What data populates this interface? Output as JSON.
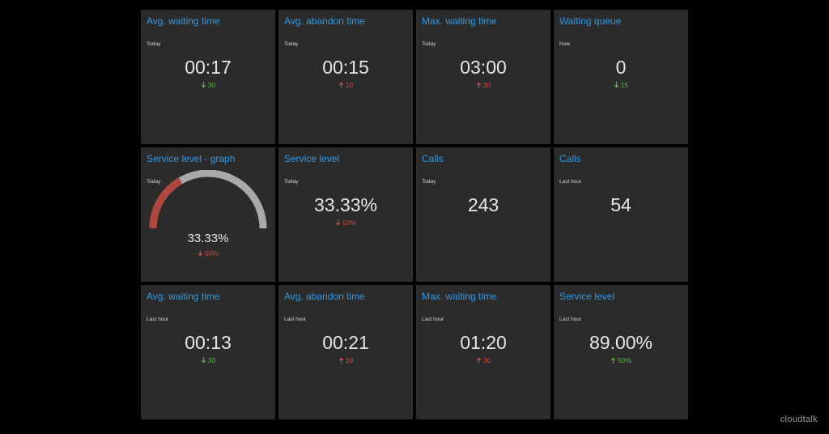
{
  "tiles": [
    {
      "title": "Avg. waiting time",
      "period": "Today",
      "value": "00:17",
      "trend": {
        "direction": "down",
        "text": "30",
        "status": "good"
      }
    },
    {
      "title": "Avg. abandon time",
      "period": "Today",
      "value": "00:15",
      "trend": {
        "direction": "up",
        "text": "10",
        "status": "bad"
      }
    },
    {
      "title": "Max. waiting time",
      "period": "Today",
      "value": "03:00",
      "trend": {
        "direction": "up",
        "text": "30",
        "status": "bad"
      }
    },
    {
      "title": "Waiting queue",
      "period": "Now",
      "value": "0",
      "trend": {
        "direction": "down",
        "text": "15",
        "status": "good"
      }
    },
    {
      "title": "Service level - graph",
      "period": "Today",
      "value": "33.33%",
      "gauge_fraction": 0.3333,
      "trend": {
        "direction": "down",
        "text": "50%",
        "status": "bad"
      }
    },
    {
      "title": "Service level",
      "period": "Today",
      "value": "33.33%",
      "trend": {
        "direction": "down",
        "text": "50%",
        "status": "bad"
      }
    },
    {
      "title": "Calls",
      "period": "Today",
      "value": "243"
    },
    {
      "title": "Calls",
      "period": "Last hour",
      "value": "54"
    },
    {
      "title": "Avg. waiting time",
      "period": "Last hour",
      "value": "00:13",
      "trend": {
        "direction": "down",
        "text": "30",
        "status": "good"
      }
    },
    {
      "title": "Avg. abandon time",
      "period": "Last hour",
      "value": "00:21",
      "trend": {
        "direction": "up",
        "text": "10",
        "status": "bad"
      }
    },
    {
      "title": "Max. waiting time",
      "period": "Last hour",
      "value": "01:20",
      "trend": {
        "direction": "up",
        "text": "30",
        "status": "bad"
      }
    },
    {
      "title": "Service level",
      "period": "Last hour",
      "value": "89.00%",
      "trend": {
        "direction": "up",
        "text": "50%",
        "status": "good"
      }
    }
  ],
  "colors": {
    "background": "#000000",
    "tile": "#2b2b2b",
    "title": "#2f9ae6",
    "good": "#55b944",
    "bad": "#d34a3f",
    "gauge_fill": "#b0463d",
    "gauge_track": "#a9a9a9"
  },
  "brand": {
    "logo_text": "cloudtalk"
  }
}
